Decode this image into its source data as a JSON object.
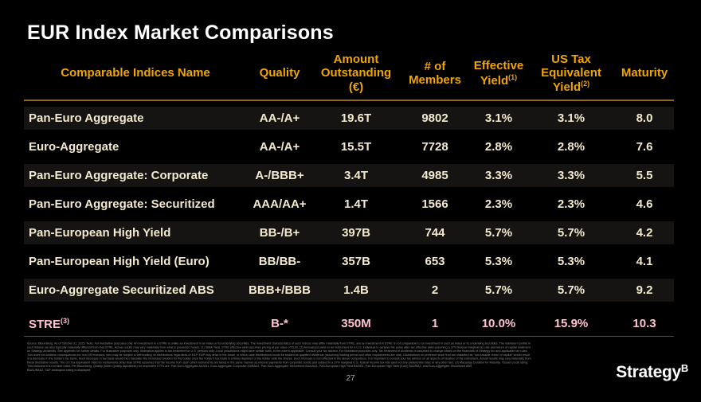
{
  "page": {
    "title": "EUR Index Market Comparisons",
    "page_number": "27",
    "logo_text": "Strategy",
    "logo_symbol": "B"
  },
  "colors": {
    "background": "#000000",
    "title_text": "#FFFFFF",
    "header_text": "#F0A500",
    "header_rule": "#8F6B0E",
    "row_text": "#F3E9CE",
    "row_band": "#151412",
    "highlight_row_text": "#FFC3CF",
    "bottom_rule": "#4D4D4D",
    "disclaimer_text": "#8E8E8E"
  },
  "table": {
    "headers": [
      {
        "label": "Comparable Indices Name"
      },
      {
        "label": "Quality"
      },
      {
        "label": "Amount Outstanding (€)"
      },
      {
        "label": "# of Members"
      },
      {
        "label": "Effective Yield",
        "sup": "(1)"
      },
      {
        "label": "US Tax Equivalent Yield",
        "sup": "(2)"
      },
      {
        "label": "Maturity"
      }
    ],
    "rows": [
      {
        "name": "Pan-Euro Aggregate",
        "quality": "AA-/A+",
        "amount": "19.6T",
        "members": "9802",
        "effective_yield": "3.1%",
        "us_tax_equivalent_yield": "3.1%",
        "maturity": "8.0"
      },
      {
        "name": "Euro-Aggregate",
        "quality": "AA-/A+",
        "amount": "15.5T",
        "members": "7728",
        "effective_yield": "2.8%",
        "us_tax_equivalent_yield": "2.8%",
        "maturity": "7.6"
      },
      {
        "name": "Pan-Euro Aggregate: Corporate",
        "quality": "A-/BBB+",
        "amount": "3.4T",
        "members": "4985",
        "effective_yield": "3.3%",
        "us_tax_equivalent_yield": "3.3%",
        "maturity": "5.5"
      },
      {
        "name": "Pan-Euro Aggregate: Securitized",
        "quality": "AAA/AA+",
        "amount": "1.4T",
        "members": "1566",
        "effective_yield": "2.3%",
        "us_tax_equivalent_yield": "2.3%",
        "maturity": "4.6"
      },
      {
        "name": "Pan-European High Yield",
        "quality": "BB-/B+",
        "amount": "397B",
        "members": "744",
        "effective_yield": "5.7%",
        "us_tax_equivalent_yield": "5.7%",
        "maturity": "4.2"
      },
      {
        "name": "Pan-European High Yield (Euro)",
        "quality": "BB/BB-",
        "amount": "357B",
        "members": "653",
        "effective_yield": "5.3%",
        "us_tax_equivalent_yield": "5.3%",
        "maturity": "4.1"
      },
      {
        "name": "Euro-Aggregate Securitized ABS",
        "quality": "BBB+/BBB",
        "amount": "1.4B",
        "members": "2",
        "effective_yield": "5.7%",
        "us_tax_equivalent_yield": "5.7%",
        "maturity": "9.2"
      },
      {
        "name": "STRE",
        "name_sup": "(3)",
        "quality": "B-*",
        "amount": "350M",
        "members": "1",
        "effective_yield": "10.0%",
        "us_tax_equivalent_yield": "15.9%",
        "maturity": "10.3"
      }
    ]
  },
  "footer": {
    "disclaimer_lines": [
      "Source: Bloomberg. As of October 31, 2025. Note: For illustrative purposes only. An investment in a STRE is unlike an investment in an index or its underlying securities. The investment characteristics of such indices may differ materially from STRE, and an investment in STRE is not comparable to an investment in such an index or its underlying securities. The risk/return profile in",
      "such indices are also typically materially different from that STRE. Actual results may vary materially from what is presented herein. (1) ISMA Yield. STRE effective yield assumes pricing at par value of €100. (2) Annualized yield on an instrument for a U.S. individual to achieve the same after-tax effective yield assuming a 37% federal marginal tax rate and return of capital treatment",
      "on Strategy dividends. See appendix for further details. For illustrative purposes only. Illustration applies to tax treatment for U.S. persons only. Local jurisdictions might have similar rules, to the extent applicable. Consult your tax advisor. For illustrative purposes only. Tax treatment of dividends is assumed to change based on the financials of Strategy Inc and applicable tax rules.",
      "This does not address consequences for non-US investors, who may be subject to withholding on distributions regardless of E&P. E&P may arise in the future, in which case distributions would be treated as qualified dividends (assuming holding period and other requirements are met). Distributions on preferred stock that are classified as \"non-taxable return of capital\" would result",
      "in a decrease in the holder's tax basis. Such decrease in tax basis would then translate into increased taxation for the holder once the holder's tax basis is entirely depleted or the holder sells the shares. Such increase is not reflected in the above comparison. It is important to consult your tax advisor on all aspects of taxation of the instrument. Actual results may vary materially from",
      "these illustrative results. The US Tax-Equivalent Yield for instruments other than STRE assumes that the income from such other instruments are taxed in the same manner as interest payments from corporate bonds and subject to a 37% marginal U.S. federal income tax rate (and not any preferential rates or any other tax). (3) Macaulay Duration for Maturity. *Issuer credit rating.",
      "This instrument is not itself rated. Per Bloomberg, Quality (Index Quality Alphabetic) for respective ETFs are: Pan-Euro Aggregate AA3/A1, Euro-Aggregate: Corporate A3/BAA1, Pan-Euro Aggregate: Securitized AAA/AA1, Pan-European High Yield BA3/B1, Pan-European High Yield (Euro) BA2/BA3, and Euro-Aggregate Securitized ABS",
      "BAA1/BAA2. S&P analogous rating is displayed."
    ]
  }
}
